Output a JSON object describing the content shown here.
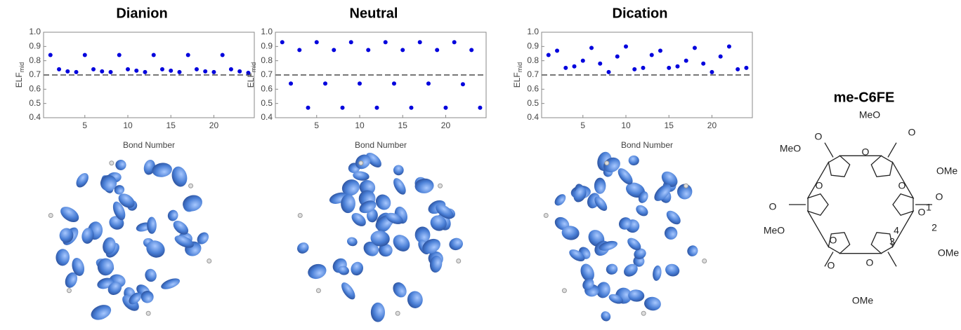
{
  "chart_data": [
    {
      "type": "scatter",
      "title": "Dianion",
      "xlabel": "Bond Number",
      "ylabel": "ELF",
      "ylabel_sub": "mid",
      "color": "#0000dd",
      "x": [
        1,
        2,
        3,
        4,
        5,
        6,
        7,
        8,
        9,
        10,
        11,
        12,
        13,
        14,
        15,
        16,
        17,
        18,
        19,
        20,
        21,
        22,
        23,
        24
      ],
      "values": [
        0.84,
        0.74,
        0.725,
        0.72,
        0.84,
        0.74,
        0.725,
        0.72,
        0.84,
        0.74,
        0.73,
        0.72,
        0.84,
        0.74,
        0.73,
        0.72,
        0.84,
        0.74,
        0.725,
        0.72,
        0.84,
        0.74,
        0.725,
        0.715
      ],
      "xlim": [
        0.2,
        24.7
      ],
      "ylim": [
        0.4,
        1
      ],
      "xticks": [
        5,
        10,
        15,
        20
      ],
      "yticks": [
        0.4,
        0.5,
        0.6,
        0.7,
        0.8,
        0.9,
        {
          "value": 1,
          "label": "1.0"
        }
      ],
      "hline": 0.7
    },
    {
      "type": "scatter",
      "title": "Neutral",
      "xlabel": "Bond Number",
      "ylabel": "ELF",
      "ylabel_sub": "mid",
      "color": "#0000dd",
      "x": [
        1,
        2,
        3,
        4,
        5,
        6,
        7,
        8,
        9,
        10,
        11,
        12,
        13,
        14,
        15,
        16,
        17,
        18,
        19,
        20,
        21,
        22,
        23,
        24
      ],
      "values": [
        0.93,
        0.64,
        0.875,
        0.47,
        0.93,
        0.64,
        0.875,
        0.47,
        0.93,
        0.64,
        0.875,
        0.47,
        0.93,
        0.64,
        0.875,
        0.47,
        0.93,
        0.64,
        0.875,
        0.47,
        0.93,
        0.635,
        0.875,
        0.47
      ],
      "xlim": [
        0.2,
        24.7
      ],
      "ylim": [
        0.4,
        1
      ],
      "xticks": [
        5,
        10,
        15,
        20
      ],
      "yticks": [
        0.4,
        0.5,
        0.6,
        0.7,
        0.8,
        0.9,
        {
          "value": 1,
          "label": "1.0"
        }
      ],
      "hline": 0.7
    },
    {
      "type": "scatter",
      "title": "Dication",
      "xlabel": "Bond Number",
      "ylabel": "ELF",
      "ylabel_sub": "mid",
      "color": "#0000dd",
      "x": [
        1,
        2,
        3,
        4,
        5,
        6,
        7,
        8,
        9,
        10,
        11,
        12,
        13,
        14,
        15,
        16,
        17,
        18,
        19,
        20,
        21,
        22,
        23,
        24
      ],
      "values": [
        0.84,
        0.87,
        0.75,
        0.76,
        0.8,
        0.89,
        0.78,
        0.72,
        0.83,
        0.9,
        0.74,
        0.75,
        0.84,
        0.87,
        0.75,
        0.76,
        0.8,
        0.89,
        0.78,
        0.72,
        0.83,
        0.9,
        0.74,
        0.75
      ],
      "xlim": [
        0.2,
        24.7
      ],
      "ylim": [
        0.4,
        1
      ],
      "xticks": [
        5,
        10,
        15,
        20
      ],
      "yticks": [
        0.4,
        0.5,
        0.6,
        0.7,
        0.8,
        0.9,
        {
          "value": 1,
          "label": "1.0"
        }
      ],
      "hline": 0.7
    }
  ],
  "structure": {
    "title": "me-C6FE",
    "labels": [
      "MeO",
      "O",
      "MeO",
      "O",
      "OMe",
      "O",
      "O",
      "MeO",
      "1",
      "2",
      "4",
      "3",
      "O",
      "OMe",
      "OMe",
      "O",
      "O",
      "O",
      "O",
      "O",
      "O"
    ]
  }
}
